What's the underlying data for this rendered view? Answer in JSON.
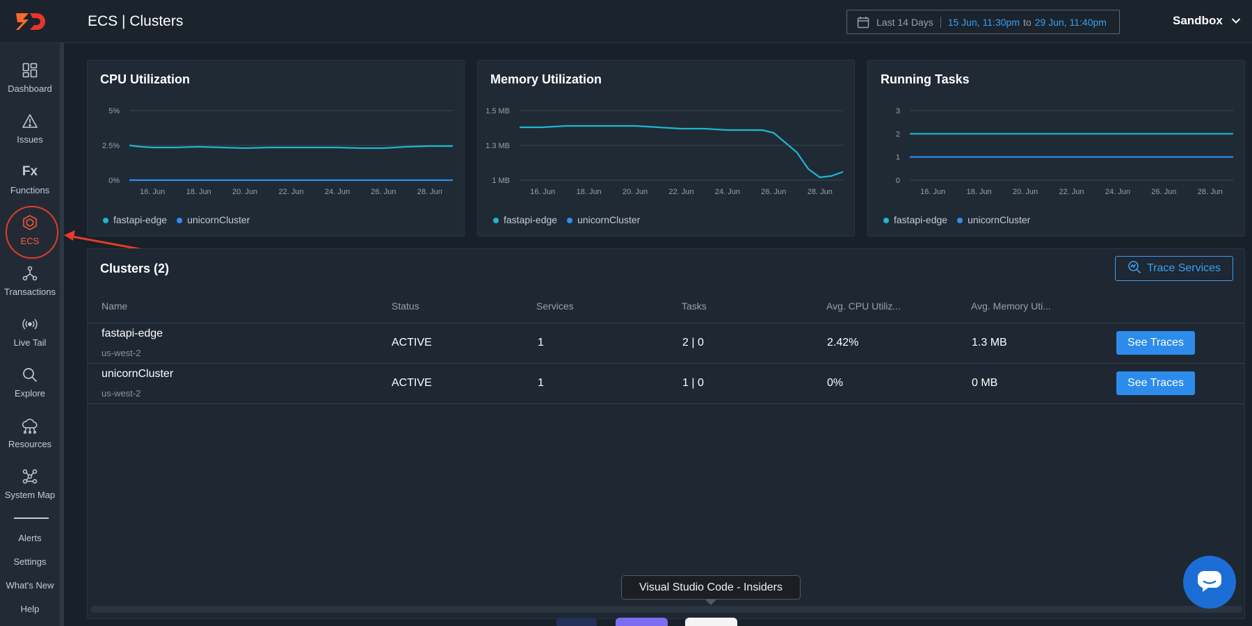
{
  "header": {
    "title": "ECS | Clusters",
    "date_range": {
      "label": "Last 14 Days",
      "from": "15 Jun, 11:30pm",
      "to_word": "to",
      "to": "29 Jun, 11:40pm"
    },
    "environment": "Sandbox"
  },
  "sidebar": {
    "items": [
      {
        "label": "Dashboard",
        "icon": "dashboard-icon"
      },
      {
        "label": "Issues",
        "icon": "warning-icon"
      },
      {
        "label": "Functions",
        "icon": "functions-icon",
        "icon_text": "Fx"
      },
      {
        "label": "ECS",
        "icon": "ecs-icon",
        "active": true
      },
      {
        "label": "Transactions",
        "icon": "transactions-icon"
      },
      {
        "label": "Live Tail",
        "icon": "live-tail-icon"
      },
      {
        "label": "Explore",
        "icon": "search-icon"
      },
      {
        "label": "Resources",
        "icon": "resources-icon"
      },
      {
        "label": "System Map",
        "icon": "system-map-icon"
      }
    ],
    "bottom_items": [
      "Alerts",
      "Settings",
      "What's New",
      "Help"
    ]
  },
  "colors": {
    "series_a": "#1fb7cf",
    "series_b": "#2f8ff0",
    "accent": "#ff5a36",
    "button": "#2d8ceb"
  },
  "chart_data": [
    {
      "type": "line",
      "title": "CPU Utilization",
      "x_tick_labels": [
        "16. Jun",
        "18. Jun",
        "20. Jun",
        "22. Jun",
        "24. Jun",
        "26. Jun",
        "28. Jun"
      ],
      "y_tick_labels": [
        "5%",
        "2.5%",
        "0%"
      ],
      "ylim": [
        0,
        5
      ],
      "series": [
        {
          "name": "fastapi-edge",
          "x": [
            15,
            15.5,
            16,
            17,
            18,
            19,
            20,
            21,
            22,
            23,
            24,
            25,
            26,
            27,
            28,
            29
          ],
          "values": [
            2.5,
            2.4,
            2.35,
            2.35,
            2.4,
            2.35,
            2.3,
            2.35,
            2.35,
            2.35,
            2.35,
            2.3,
            2.3,
            2.4,
            2.45,
            2.45
          ]
        },
        {
          "name": "unicornCluster",
          "x": [
            15,
            29
          ],
          "values": [
            0,
            0
          ]
        }
      ]
    },
    {
      "type": "line",
      "title": "Memory Utilization",
      "x_tick_labels": [
        "16. Jun",
        "18. Jun",
        "20. Jun",
        "22. Jun",
        "24. Jun",
        "26. Jun",
        "28. Jun"
      ],
      "y_tick_labels": [
        "1.5 MB",
        "1.3 MB",
        "1 MB"
      ],
      "y_tick_values": [
        1.5,
        1.25,
        1.0
      ],
      "ylim": [
        1.0,
        1.5
      ],
      "series": [
        {
          "name": "fastapi-edge",
          "x": [
            15,
            16,
            17,
            18,
            19,
            20,
            21,
            22,
            23,
            24,
            25,
            25.5,
            26,
            27,
            27.5,
            28,
            28.5,
            29
          ],
          "values": [
            1.38,
            1.38,
            1.39,
            1.39,
            1.39,
            1.39,
            1.38,
            1.37,
            1.37,
            1.36,
            1.36,
            1.36,
            1.34,
            1.2,
            1.08,
            1.02,
            1.03,
            1.06
          ]
        },
        {
          "name": "unicornCluster",
          "x": [],
          "values": []
        }
      ]
    },
    {
      "type": "line",
      "title": "Running Tasks",
      "x_tick_labels": [
        "16. Jun",
        "18. Jun",
        "20. Jun",
        "22. Jun",
        "24. Jun",
        "26. Jun",
        "28. Jun"
      ],
      "y_tick_labels": [
        "3",
        "2",
        "1",
        "0"
      ],
      "ylim": [
        0,
        3
      ],
      "series": [
        {
          "name": "fastapi-edge",
          "x": [
            15,
            29
          ],
          "values": [
            2,
            2
          ]
        },
        {
          "name": "unicornCluster",
          "x": [
            15,
            29
          ],
          "values": [
            1,
            1
          ]
        }
      ]
    }
  ],
  "clusters": {
    "title": "Clusters (2)",
    "trace_button": "Trace Services",
    "columns": [
      "Name",
      "Status",
      "Services",
      "Tasks",
      "Avg. CPU Utiliz...",
      "Avg. Memory Uti..."
    ],
    "rows": [
      {
        "name": "fastapi-edge",
        "region": "us-west-2",
        "status": "ACTIVE",
        "services": "1",
        "tasks": "2 | 0",
        "cpu": "2.42%",
        "memory": "1.3 MB",
        "action": "See Traces"
      },
      {
        "name": "unicornCluster",
        "region": "us-west-2",
        "status": "ACTIVE",
        "services": "1",
        "tasks": "1 | 0",
        "cpu": "0%",
        "memory": "0 MB",
        "action": "See Traces"
      }
    ]
  },
  "tooltip": "Visual Studio Code - Insiders"
}
